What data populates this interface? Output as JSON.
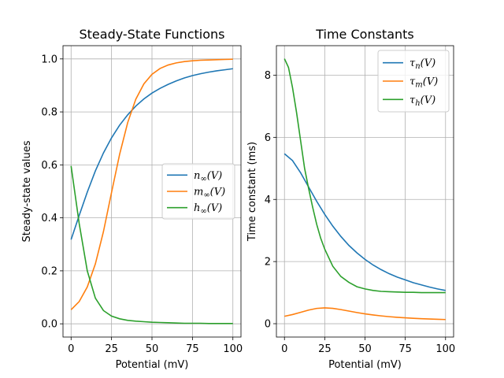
{
  "chart_data": [
    {
      "type": "line",
      "title": "Steady-State Functions",
      "xlabel": "Potential (mV)",
      "ylabel": "Steady-state values",
      "xlim": [
        -5,
        105
      ],
      "ylim": [
        -0.05,
        1.05
      ],
      "xticks": [
        0,
        25,
        50,
        75,
        100
      ],
      "xtick_labels": [
        "0",
        "25",
        "50",
        "75",
        "100"
      ],
      "yticks": [
        0.0,
        0.2,
        0.4,
        0.6,
        0.8,
        1.0
      ],
      "ytick_labels": [
        "0.0",
        "0.2",
        "0.4",
        "0.6",
        "0.8",
        "1.0"
      ],
      "grid": true,
      "legend_position": "center-right",
      "series": [
        {
          "name": "n∞(V)",
          "color": "#1f77b4",
          "x": [
            0,
            5,
            10,
            15,
            20,
            25,
            30,
            35,
            40,
            45,
            50,
            55,
            60,
            65,
            70,
            75,
            80,
            85,
            90,
            95,
            100
          ],
          "y": [
            0.318,
            0.409,
            0.497,
            0.577,
            0.645,
            0.702,
            0.75,
            0.789,
            0.822,
            0.849,
            0.871,
            0.889,
            0.904,
            0.917,
            0.928,
            0.937,
            0.944,
            0.95,
            0.955,
            0.959,
            0.963
          ]
        },
        {
          "name": "m∞(V)",
          "color": "#ff7f0e",
          "x": [
            0,
            5,
            10,
            15,
            20,
            25,
            30,
            35,
            40,
            45,
            50,
            55,
            60,
            65,
            70,
            75,
            80,
            85,
            90,
            95,
            100
          ],
          "y": [
            0.053,
            0.084,
            0.139,
            0.226,
            0.348,
            0.496,
            0.64,
            0.76,
            0.848,
            0.906,
            0.942,
            0.964,
            0.977,
            0.985,
            0.99,
            0.993,
            0.995,
            0.996,
            0.997,
            0.998,
            0.999
          ]
        },
        {
          "name": "h∞(V)",
          "color": "#2ca02c",
          "x": [
            0,
            5,
            10,
            15,
            20,
            25,
            30,
            35,
            40,
            45,
            50,
            55,
            60,
            65,
            70,
            75,
            80,
            85,
            90,
            95,
            100
          ],
          "y": [
            0.596,
            0.379,
            0.2,
            0.097,
            0.05,
            0.029,
            0.019,
            0.013,
            0.01,
            0.008,
            0.006,
            0.005,
            0.004,
            0.003,
            0.002,
            0.002,
            0.002,
            0.001,
            0.001,
            0.001,
            0.001
          ]
        }
      ]
    },
    {
      "type": "line",
      "title": "Time Constants",
      "xlabel": "Potential (mV)",
      "ylabel": "Time constant (ms)",
      "xlim": [
        -5,
        105
      ],
      "ylim": [
        -0.43,
        8.95
      ],
      "xticks": [
        0,
        25,
        50,
        75,
        100
      ],
      "xtick_labels": [
        "0",
        "25",
        "50",
        "75",
        "100"
      ],
      "yticks": [
        0,
        2,
        4,
        6,
        8
      ],
      "ytick_labels": [
        "0",
        "2",
        "4",
        "6",
        "8"
      ],
      "grid": true,
      "legend_position": "top-right",
      "series": [
        {
          "name": "τn(V)",
          "color": "#1f77b4",
          "x": [
            0,
            5,
            10,
            15,
            20,
            25,
            30,
            35,
            40,
            45,
            50,
            55,
            60,
            65,
            70,
            75,
            80,
            85,
            90,
            95,
            100
          ],
          "y": [
            5.47,
            5.25,
            4.86,
            4.4,
            3.94,
            3.52,
            3.14,
            2.81,
            2.52,
            2.28,
            2.07,
            1.89,
            1.74,
            1.61,
            1.5,
            1.41,
            1.32,
            1.25,
            1.18,
            1.12,
            1.07
          ]
        },
        {
          "name": "τm(V)",
          "color": "#ff7f0e",
          "x": [
            0,
            5,
            10,
            15,
            20,
            25,
            30,
            35,
            40,
            45,
            50,
            55,
            60,
            65,
            70,
            75,
            80,
            85,
            90,
            95,
            100
          ],
          "y": [
            0.238,
            0.294,
            0.365,
            0.438,
            0.492,
            0.51,
            0.493,
            0.454,
            0.406,
            0.359,
            0.317,
            0.281,
            0.251,
            0.226,
            0.206,
            0.189,
            0.174,
            0.162,
            0.151,
            0.142,
            0.134
          ]
        },
        {
          "name": "τh(V)",
          "color": "#2ca02c",
          "x": [
            0,
            2.5,
            5,
            7.5,
            10,
            12.5,
            15,
            17.5,
            20,
            22.5,
            25,
            30,
            35,
            40,
            45,
            50,
            55,
            60,
            65,
            70,
            75,
            80,
            85,
            90,
            95,
            100
          ],
          "y": [
            8.53,
            8.25,
            7.6,
            6.8,
            5.9,
            5.0,
            4.35,
            3.75,
            3.2,
            2.75,
            2.4,
            1.85,
            1.52,
            1.33,
            1.19,
            1.12,
            1.07,
            1.04,
            1.03,
            1.02,
            1.01,
            1.01,
            1.0,
            1.0,
            1.0,
            1.0
          ]
        }
      ]
    }
  ]
}
